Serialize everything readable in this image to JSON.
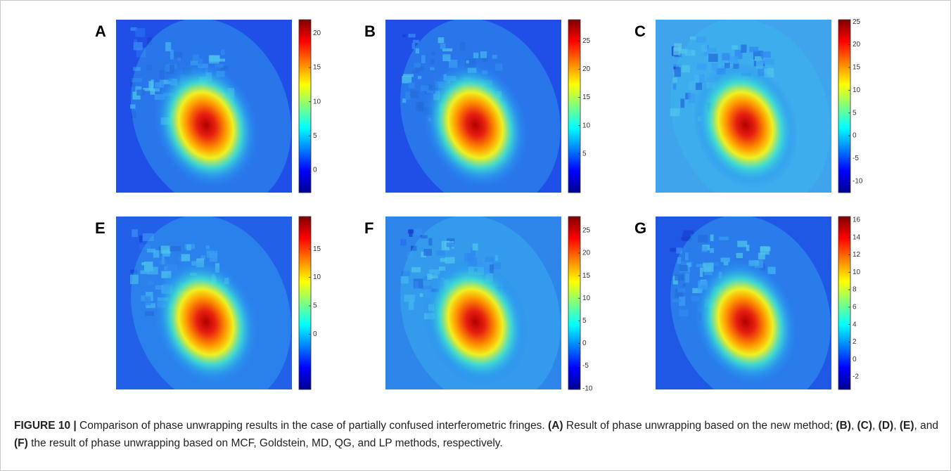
{
  "figure": {
    "panels": [
      {
        "label": "A",
        "background": "#1f4fe6",
        "colorbar": {
          "lim": [
            -3.3,
            22
          ],
          "ticks": [
            20,
            15,
            10,
            5,
            0
          ]
        }
      },
      {
        "label": "B",
        "background": "#1f4fe6",
        "colorbar": {
          "lim": [
            -1.9,
            28.8
          ],
          "ticks": [
            25,
            20,
            15,
            10,
            5
          ]
        }
      },
      {
        "label": "C",
        "background": "#3fa4ec",
        "colorbar": {
          "lim": [
            -12.5,
            25.5
          ],
          "ticks": [
            25,
            20,
            15,
            10,
            5,
            0,
            -5,
            -10
          ]
        }
      },
      {
        "label": "E",
        "background": "#2360e8",
        "colorbar": {
          "lim": [
            -9.7,
            20.7
          ],
          "ticks": [
            15,
            10,
            5,
            0
          ]
        }
      },
      {
        "label": "F",
        "background": "#2e86ea",
        "colorbar": {
          "lim": [
            -10.2,
            28.1
          ],
          "ticks": [
            25,
            20,
            15,
            10,
            5,
            0,
            -5,
            -10
          ]
        }
      },
      {
        "label": "G",
        "background": "#2058e6",
        "colorbar": {
          "lim": [
            -3.45,
            16.4
          ],
          "ticks": [
            16,
            14,
            12,
            10,
            8,
            6,
            4,
            2,
            0,
            -2
          ]
        }
      }
    ],
    "caption": [
      {
        "text": "FIGURE 10 |",
        "bold": true
      },
      {
        "text": " Comparison of phase unwrapping results in the case of partially confused interferometric fringes. ",
        "bold": false
      },
      {
        "text": "(A)",
        "bold": true
      },
      {
        "text": " Result of phase unwrapping based on the new method; ",
        "bold": false
      },
      {
        "text": "(B)",
        "bold": true
      },
      {
        "text": ", ",
        "bold": false
      },
      {
        "text": "(C)",
        "bold": true
      },
      {
        "text": ", ",
        "bold": false
      },
      {
        "text": "(D)",
        "bold": true
      },
      {
        "text": ", ",
        "bold": false
      },
      {
        "text": "(E)",
        "bold": true
      },
      {
        "text": ", and ",
        "bold": false
      },
      {
        "text": "(F)",
        "bold": true
      },
      {
        "text": " the result of phase unwrapping based on MCF, Goldstein, MD, QG, and LP methods, respectively.",
        "bold": false
      }
    ]
  }
}
